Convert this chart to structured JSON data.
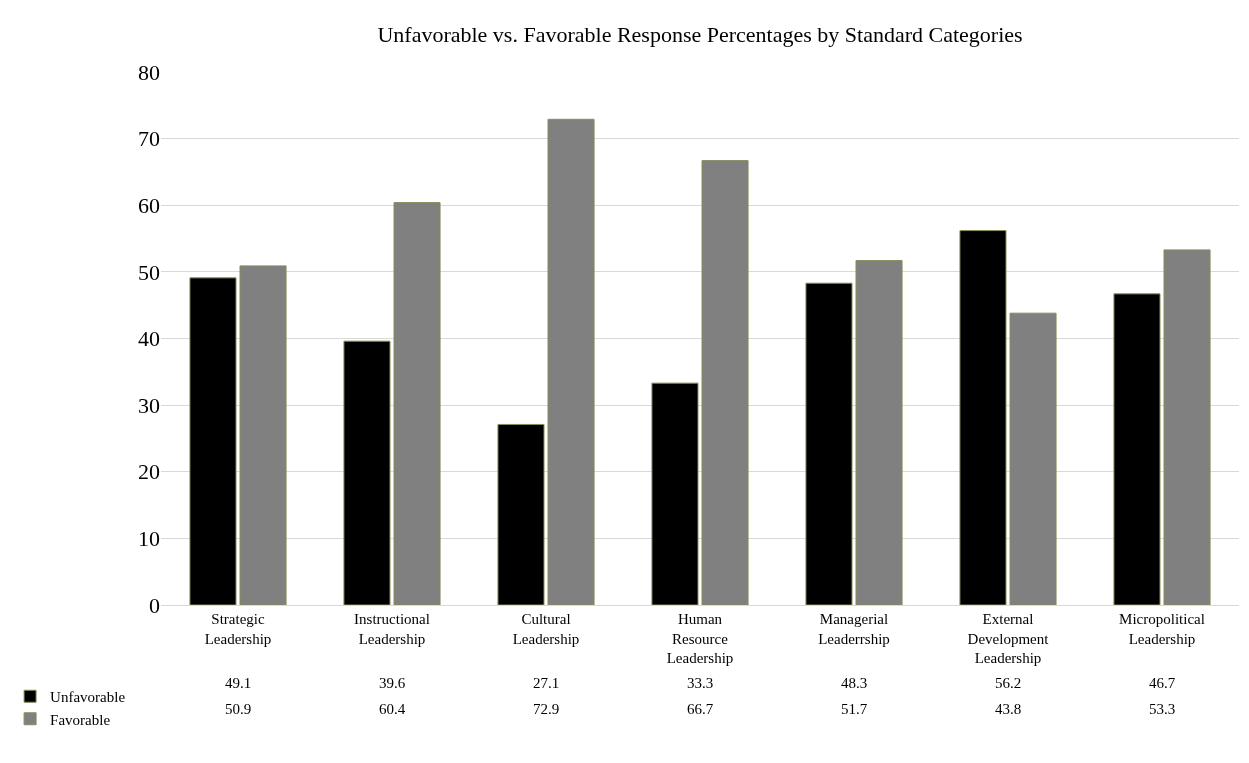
{
  "chart_data": {
    "type": "bar",
    "title": "Unfavorable vs. Favorable Response Percentages by Standard Categories",
    "categories": [
      "Strategic Leadership",
      "Instructional Leadership",
      "Cultural Leadership",
      "Human Resource Leadership",
      "Managerial Leaderrship",
      "External Development Leadership",
      "Micropolitical Leadership"
    ],
    "series": [
      {
        "name": "Unfavorable",
        "color": "#000000",
        "values": [
          49.1,
          39.6,
          27.1,
          33.3,
          48.3,
          56.2,
          46.7
        ]
      },
      {
        "name": "Favorable",
        "color": "#808080",
        "values": [
          50.9,
          60.4,
          72.9,
          66.7,
          51.7,
          43.8,
          53.3
        ]
      }
    ],
    "ylim": [
      0,
      80
    ],
    "yticks": [
      0,
      10,
      20,
      30,
      40,
      50,
      60,
      70,
      80
    ],
    "grid": "y",
    "legend": "bottom left",
    "data_labels": true
  }
}
